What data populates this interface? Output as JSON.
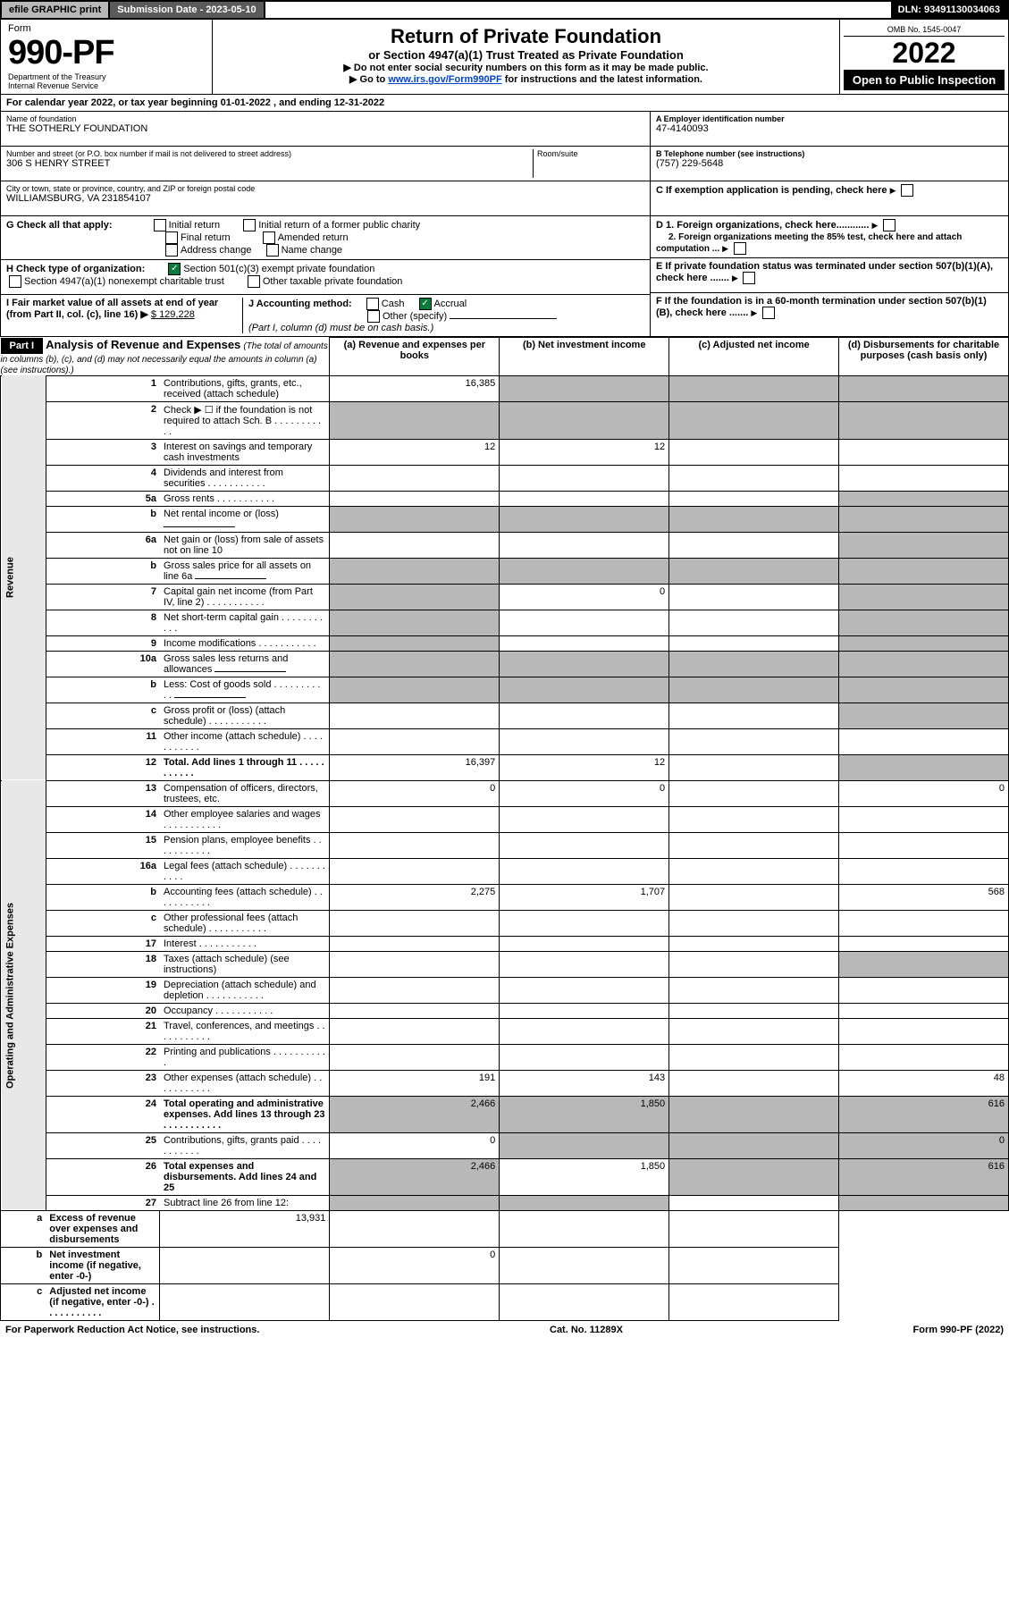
{
  "topbar": {
    "efile": "efile GRAPHIC print",
    "subdate": "Submission Date - 2023-05-10",
    "dln": "DLN: 93491130034063"
  },
  "hdr": {
    "form": "Form",
    "num": "990-PF",
    "dept": "Department of the Treasury",
    "irs": "Internal Revenue Service",
    "title": "Return of Private Foundation",
    "sub": "or Section 4947(a)(1) Trust Treated as Private Foundation",
    "note1": "▶ Do not enter social security numbers on this form as it may be made public.",
    "note2_pre": "▶ Go to ",
    "note2_link": "www.irs.gov/Form990PF",
    "note2_post": " for instructions and the latest information.",
    "omb": "OMB No. 1545-0047",
    "year": "2022",
    "open": "Open to Public Inspection"
  },
  "calyr": "For calendar year 2022, or tax year beginning 01-01-2022                            , and ending 12-31-2022",
  "name": {
    "lbl": "Name of foundation",
    "val": "THE SOTHERLY FOUNDATION"
  },
  "addr": {
    "lbl": "Number and street (or P.O. box number if mail is not delivered to street address)",
    "val": "306 S HENRY STREET",
    "room": "Room/suite"
  },
  "city": {
    "lbl": "City or town, state or province, country, and ZIP or foreign postal code",
    "val": "WILLIAMSBURG, VA  231854107"
  },
  "ein": {
    "lbl": "A Employer identification number",
    "val": "47-4140093"
  },
  "tel": {
    "lbl": "B Telephone number (see instructions)",
    "val": "(757) 229-5648"
  },
  "c": "C If exemption application is pending, check here",
  "d1": "D 1. Foreign organizations, check here............",
  "d2": "2. Foreign organizations meeting the 85% test, check here and attach computation ...",
  "e": "E  If private foundation status was terminated under section 507(b)(1)(A), check here .......",
  "f": "F  If the foundation is in a 60-month termination under section 507(b)(1)(B), check here .......",
  "g": {
    "lbl": "G Check all that apply:",
    "opts": [
      "Initial return",
      "Initial return of a former public charity",
      "Final return",
      "Amended return",
      "Address change",
      "Name change"
    ]
  },
  "h": {
    "lbl": "H Check type of organization:",
    "o1": "Section 501(c)(3) exempt private foundation",
    "o2": "Section 4947(a)(1) nonexempt charitable trust",
    "o3": "Other taxable private foundation"
  },
  "i": {
    "lbl": "I Fair market value of all assets at end of year (from Part II, col. (c), line 16) ▶",
    "val": "$  129,228"
  },
  "j": {
    "lbl": "J Accounting method:",
    "o1": "Cash",
    "o2": "Accrual",
    "o3": "Other (specify)",
    "note": "(Part I, column (d) must be on cash basis.)"
  },
  "part1": {
    "lbl": "Part I",
    "title": "Analysis of Revenue and Expenses",
    "note": "(The total of amounts in columns (b), (c), and (d) may not necessarily equal the amounts in column (a) (see instructions).)",
    "cols": [
      "(a)  Revenue and expenses per books",
      "(b)  Net investment income",
      "(c)  Adjusted net income",
      "(d)  Disbursements for charitable purposes (cash basis only)"
    ]
  },
  "sec": {
    "rev": "Revenue",
    "exp": "Operating and Administrative Expenses"
  },
  "rows": [
    {
      "n": "1",
      "d": "Contributions, gifts, grants, etc., received (attach schedule)",
      "a": "16,385"
    },
    {
      "n": "2",
      "d": "Check ▶ ☐ if the foundation is not required to attach Sch. B",
      "dots": true
    },
    {
      "n": "3",
      "d": "Interest on savings and temporary cash investments",
      "a": "12",
      "b": "12"
    },
    {
      "n": "4",
      "d": "Dividends and interest from securities",
      "dots": true
    },
    {
      "n": "5a",
      "d": "Gross rents",
      "dots": true
    },
    {
      "n": "b",
      "d": "Net rental income or (loss)",
      "line": true
    },
    {
      "n": "6a",
      "d": "Net gain or (loss) from sale of assets not on line 10"
    },
    {
      "n": "b",
      "d": "Gross sales price for all assets on line 6a",
      "line": true
    },
    {
      "n": "7",
      "d": "Capital gain net income (from Part IV, line 2)",
      "dots": true,
      "b": "0"
    },
    {
      "n": "8",
      "d": "Net short-term capital gain",
      "dots": true
    },
    {
      "n": "9",
      "d": "Income modifications",
      "dots": true
    },
    {
      "n": "10a",
      "d": "Gross sales less returns and allowances",
      "line": true
    },
    {
      "n": "b",
      "d": "Less: Cost of goods sold",
      "dots": true,
      "line": true
    },
    {
      "n": "c",
      "d": "Gross profit or (loss) (attach schedule)",
      "dots": true
    },
    {
      "n": "11",
      "d": "Other income (attach schedule)",
      "dots": true
    },
    {
      "n": "12",
      "d": "Total. Add lines 1 through 11",
      "dots": true,
      "bold": true,
      "a": "16,397",
      "b": "12"
    },
    {
      "n": "13",
      "d": "Compensation of officers, directors, trustees, etc.",
      "a": "0",
      "b": "0",
      "dd": "0"
    },
    {
      "n": "14",
      "d": "Other employee salaries and wages",
      "dots": true
    },
    {
      "n": "15",
      "d": "Pension plans, employee benefits",
      "dots": true
    },
    {
      "n": "16a",
      "d": "Legal fees (attach schedule)",
      "dots": true
    },
    {
      "n": "b",
      "d": "Accounting fees (attach schedule)",
      "dots": true,
      "a": "2,275",
      "b": "1,707",
      "dd": "568"
    },
    {
      "n": "c",
      "d": "Other professional fees (attach schedule)",
      "dots": true
    },
    {
      "n": "17",
      "d": "Interest",
      "dots": true
    },
    {
      "n": "18",
      "d": "Taxes (attach schedule) (see instructions)"
    },
    {
      "n": "19",
      "d": "Depreciation (attach schedule) and depletion",
      "dots": true
    },
    {
      "n": "20",
      "d": "Occupancy",
      "dots": true
    },
    {
      "n": "21",
      "d": "Travel, conferences, and meetings",
      "dots": true
    },
    {
      "n": "22",
      "d": "Printing and publications",
      "dots": true
    },
    {
      "n": "23",
      "d": "Other expenses (attach schedule)",
      "dots": true,
      "a": "191",
      "b": "143",
      "dd": "48"
    },
    {
      "n": "24",
      "d": "Total operating and administrative expenses. Add lines 13 through 23",
      "dots": true,
      "bold": true,
      "a": "2,466",
      "b": "1,850",
      "dd": "616"
    },
    {
      "n": "25",
      "d": "Contributions, gifts, grants paid",
      "dots": true,
      "a": "0",
      "dd": "0"
    },
    {
      "n": "26",
      "d": "Total expenses and disbursements. Add lines 24 and 25",
      "bold": true,
      "a": "2,466",
      "b": "1,850",
      "dd": "616"
    },
    {
      "n": "27",
      "d": "Subtract line 26 from line 12:"
    },
    {
      "n": "a",
      "d": "Excess of revenue over expenses and disbursements",
      "bold": true,
      "a": "13,931"
    },
    {
      "n": "b",
      "d": "Net investment income (if negative, enter -0-)",
      "bold": true,
      "b": "0"
    },
    {
      "n": "c",
      "d": "Adjusted net income (if negative, enter -0-)",
      "bold": true,
      "dots": true
    }
  ],
  "grayCells": {
    "1": [
      "b",
      "c",
      "d"
    ],
    "2": [
      "a",
      "b",
      "c",
      "d"
    ],
    "5a": [
      "c",
      "d"
    ],
    "b_5": [
      "a",
      "b",
      "c",
      "d"
    ],
    "6a": [
      "c",
      "d"
    ],
    "b_6": [
      "a",
      "b",
      "c",
      "d"
    ],
    "7": [
      "a",
      "c",
      "d"
    ],
    "8": [
      "a",
      "c",
      "d"
    ],
    "9": [
      "a",
      "d"
    ],
    "10a": [
      "a",
      "b",
      "c",
      "d"
    ],
    "b_10": [
      "a",
      "b",
      "c",
      "d"
    ],
    "c_10": [
      "c",
      "d"
    ],
    "11": [
      "d"
    ],
    "12": [
      "d"
    ],
    "19": [
      "d"
    ],
    "27": [
      "a",
      "b",
      "c",
      "d"
    ],
    "a_27": [
      "b",
      "c",
      "d"
    ],
    "b_27": [
      "a",
      "c",
      "d"
    ],
    "c_27": [
      "a",
      "b",
      "d"
    ]
  },
  "foot": {
    "l": "For Paperwork Reduction Act Notice, see instructions.",
    "m": "Cat. No. 11289X",
    "r": "Form 990-PF (2022)"
  }
}
